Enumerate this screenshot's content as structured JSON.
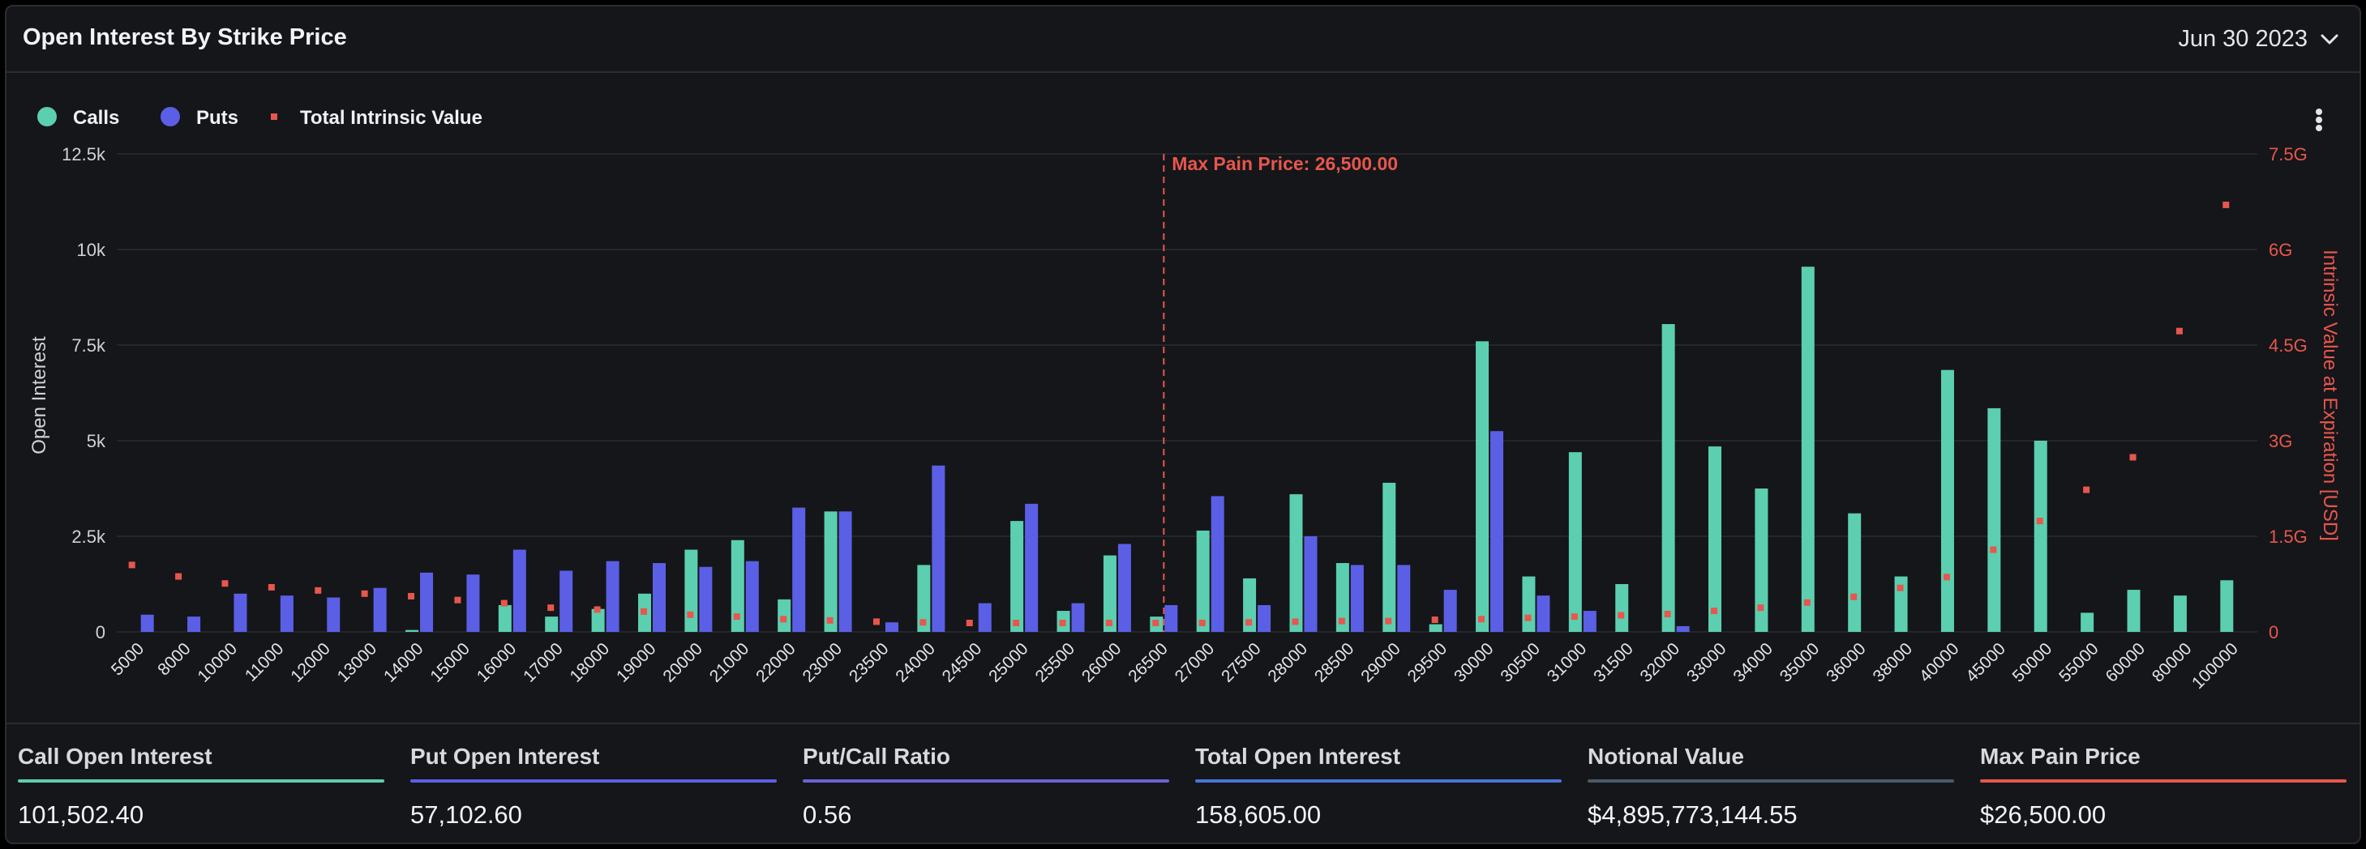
{
  "header": {
    "title": "Open Interest By Strike Price",
    "date": "Jun 30 2023"
  },
  "colors": {
    "calls": "#5ccfb0",
    "puts": "#5b5fe6",
    "intrinsic": "#e8564d",
    "max_pain": "#e8564d",
    "notional": "#4a5a6a",
    "total": "#4b73d8",
    "ratio": "#6a62d8"
  },
  "chart_data": {
    "type": "bar",
    "legend": [
      "Calls",
      "Puts",
      "Total Intrinsic Value"
    ],
    "legend_position": "top-left",
    "ylabel": "Open Interest",
    "y2label": "Intrinsic Value at Expiration [USD]",
    "ylim": [
      0,
      12500
    ],
    "y2lim": [
      0,
      7500000000
    ],
    "yticks": [
      "0",
      "2.5k",
      "5k",
      "7.5k",
      "10k",
      "12.5k"
    ],
    "y2ticks": [
      "0",
      "1.5G",
      "3G",
      "4.5G",
      "6G",
      "7.5G"
    ],
    "grid": true,
    "categories": [
      "5000",
      "8000",
      "10000",
      "11000",
      "12000",
      "13000",
      "14000",
      "15000",
      "16000",
      "17000",
      "18000",
      "19000",
      "20000",
      "21000",
      "22000",
      "23000",
      "23500",
      "24000",
      "24500",
      "25000",
      "25500",
      "26000",
      "26500",
      "27000",
      "27500",
      "28000",
      "28500",
      "29000",
      "29500",
      "30000",
      "30500",
      "31000",
      "31500",
      "32000",
      "33000",
      "34000",
      "35000",
      "36000",
      "38000",
      "40000",
      "45000",
      "50000",
      "55000",
      "60000",
      "80000",
      "100000"
    ],
    "series": [
      {
        "name": "Calls",
        "values": [
          0,
          0,
          0,
          0,
          0,
          0,
          50,
          0,
          700,
          400,
          600,
          1000,
          2150,
          2400,
          850,
          3150,
          0,
          1750,
          0,
          2900,
          550,
          2000,
          400,
          2650,
          1400,
          3600,
          1800,
          3900,
          200,
          7600,
          1450,
          4700,
          1250,
          8050,
          4850,
          3750,
          9550,
          3100,
          1450,
          6850,
          5850,
          5000,
          500,
          1100,
          950,
          1350
        ]
      },
      {
        "name": "Puts",
        "values": [
          450,
          400,
          1000,
          950,
          900,
          1150,
          1550,
          1500,
          2150,
          1600,
          1850,
          1800,
          1700,
          1850,
          3250,
          3150,
          250,
          4350,
          750,
          3350,
          750,
          2300,
          700,
          3550,
          700,
          2500,
          1750,
          1750,
          1100,
          5250,
          950,
          550,
          0,
          150,
          0,
          0,
          0,
          0,
          0,
          0,
          0,
          0,
          0,
          0,
          0,
          0
        ]
      },
      {
        "name": "Total Intrinsic Value",
        "axis": "right",
        "values": [
          1050000000,
          870000000,
          760000000,
          700000000,
          650000000,
          600000000,
          560000000,
          500000000,
          450000000,
          380000000,
          350000000,
          320000000,
          270000000,
          240000000,
          200000000,
          180000000,
          160000000,
          150000000,
          140000000,
          140000000,
          140000000,
          140000000,
          140000000,
          140000000,
          150000000,
          160000000,
          170000000,
          170000000,
          190000000,
          200000000,
          220000000,
          240000000,
          260000000,
          280000000,
          330000000,
          380000000,
          460000000,
          550000000,
          690000000,
          860000000,
          1290000000,
          1740000000,
          2230000000,
          2740000000,
          4720000000,
          6700000000
        ]
      }
    ],
    "annotations": [
      {
        "category": "26500",
        "text": "Max Pain Price: 26,500.00"
      }
    ]
  },
  "stats": [
    {
      "label": "Call Open Interest",
      "value": "101,502.40",
      "color": "#5ccfb0"
    },
    {
      "label": "Put Open Interest",
      "value": "57,102.60",
      "color": "#5b5fe6"
    },
    {
      "label": "Put/Call Ratio",
      "value": "0.56",
      "color": "#6a62d8"
    },
    {
      "label": "Total Open Interest",
      "value": "158,605.00",
      "color": "#4b73d8"
    },
    {
      "label": "Notional Value",
      "value": "$4,895,773,144.55",
      "color": "#4a5a6a"
    },
    {
      "label": "Max Pain Price",
      "value": "$26,500.00",
      "color": "#e8564d"
    }
  ]
}
